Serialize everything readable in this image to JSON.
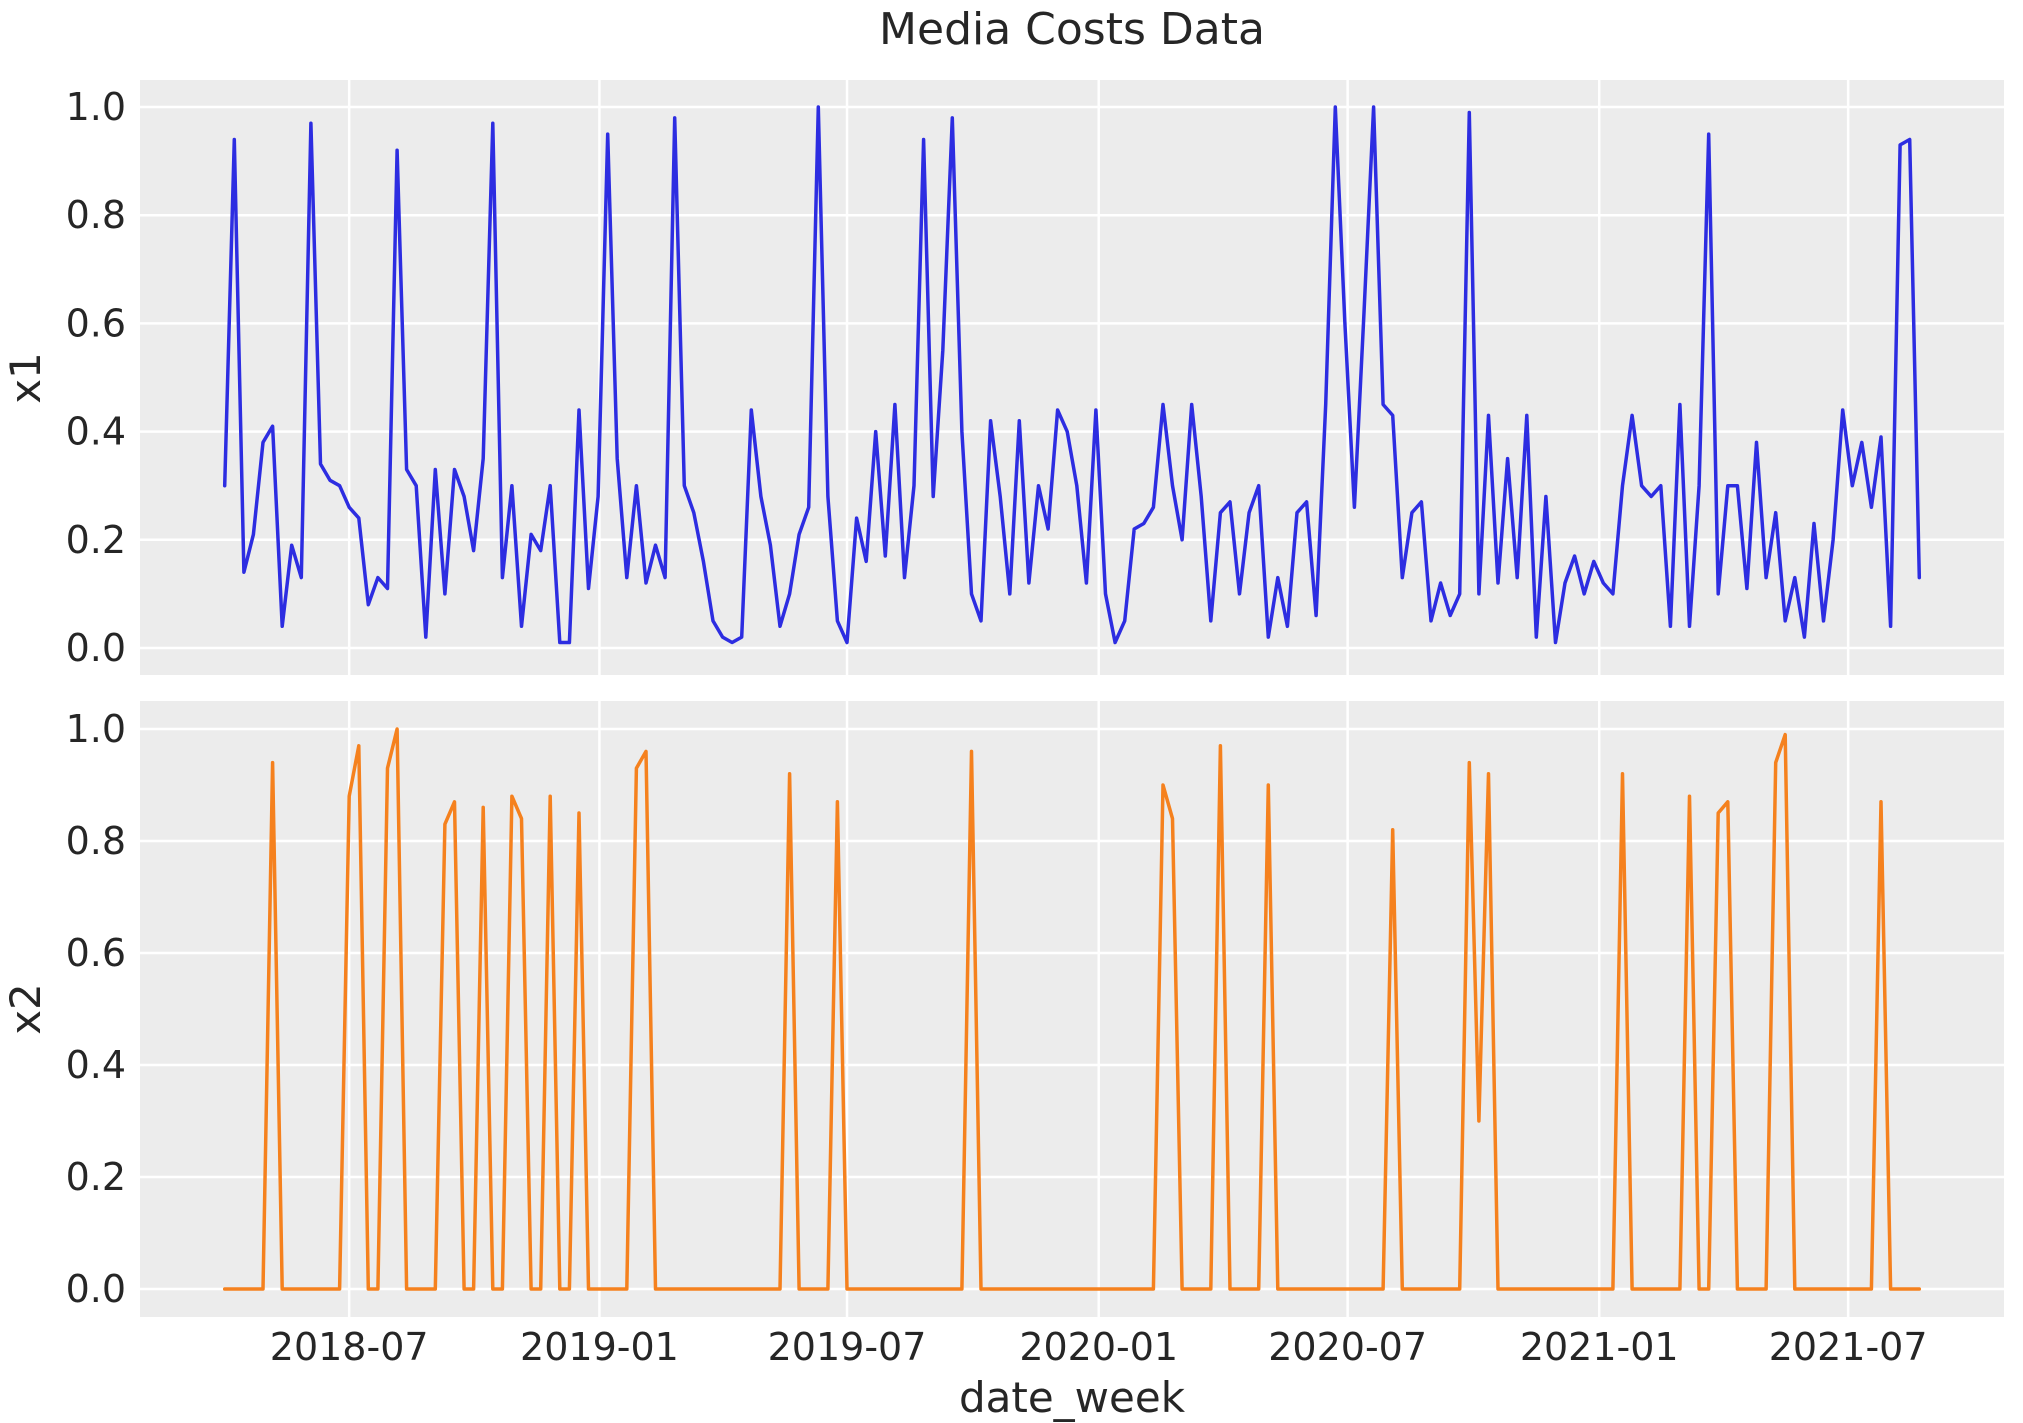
{
  "chart_data": {
    "type": "line",
    "title": "Media Costs Data",
    "xlabel": "date_week",
    "x_axis": {
      "start_date": "2018-04-02",
      "step_days": 7,
      "n_points": 178,
      "tick_labels": [
        "2018-07",
        "2019-01",
        "2019-07",
        "2020-01",
        "2020-07",
        "2021-01",
        "2021-07"
      ],
      "tick_week_positions": [
        13,
        39.14,
        65,
        91.29,
        117.29,
        143.57,
        169.57
      ],
      "xlim_weeks": [
        -8.85,
        185.85
      ]
    },
    "y_axis": {
      "tick_labels": [
        "0.0",
        "0.2",
        "0.4",
        "0.6",
        "0.8",
        "1.0"
      ],
      "tick_values": [
        0.0,
        0.2,
        0.4,
        0.6,
        0.8,
        1.0
      ],
      "ylim": [
        -0.05,
        1.05
      ]
    },
    "grid": true,
    "legend_position": "none",
    "style": {
      "plot_background": "#ececec",
      "grid_color": "#ffffff",
      "text_color": "#262626",
      "figure_background": "#ffffff"
    },
    "subplots": [
      {
        "name": "x1",
        "ylabel": "x1",
        "color": "#2d2de1",
        "values": [
          0.3,
          0.94,
          0.14,
          0.21,
          0.38,
          0.41,
          0.04,
          0.19,
          0.13,
          0.97,
          0.34,
          0.31,
          0.3,
          0.26,
          0.24,
          0.08,
          0.13,
          0.11,
          0.92,
          0.33,
          0.3,
          0.02,
          0.33,
          0.1,
          0.33,
          0.28,
          0.18,
          0.35,
          0.97,
          0.13,
          0.3,
          0.04,
          0.21,
          0.18,
          0.3,
          0.01,
          0.01,
          0.44,
          0.11,
          0.28,
          0.95,
          0.35,
          0.13,
          0.3,
          0.12,
          0.19,
          0.13,
          0.98,
          0.3,
          0.25,
          0.16,
          0.05,
          0.02,
          0.01,
          0.02,
          0.44,
          0.28,
          0.19,
          0.04,
          0.1,
          0.21,
          0.26,
          1.0,
          0.28,
          0.05,
          0.01,
          0.24,
          0.16,
          0.4,
          0.17,
          0.45,
          0.13,
          0.3,
          0.94,
          0.28,
          0.55,
          0.98,
          0.4,
          0.1,
          0.05,
          0.42,
          0.28,
          0.1,
          0.42,
          0.12,
          0.3,
          0.22,
          0.44,
          0.4,
          0.3,
          0.12,
          0.44,
          0.1,
          0.01,
          0.05,
          0.22,
          0.23,
          0.26,
          0.45,
          0.3,
          0.2,
          0.45,
          0.28,
          0.05,
          0.25,
          0.27,
          0.1,
          0.25,
          0.3,
          0.02,
          0.13,
          0.04,
          0.25,
          0.27,
          0.06,
          0.45,
          1.0,
          0.6,
          0.26,
          0.62,
          1.0,
          0.45,
          0.43,
          0.13,
          0.25,
          0.27,
          0.05,
          0.12,
          0.06,
          0.1,
          0.99,
          0.1,
          0.43,
          0.12,
          0.35,
          0.13,
          0.43,
          0.02,
          0.28,
          0.01,
          0.12,
          0.17,
          0.1,
          0.16,
          0.12,
          0.1,
          0.3,
          0.43,
          0.3,
          0.28,
          0.3,
          0.04,
          0.45,
          0.04,
          0.3,
          0.95,
          0.1,
          0.3,
          0.3,
          0.11,
          0.38,
          0.13,
          0.25,
          0.05,
          0.13,
          0.02,
          0.23,
          0.05,
          0.2,
          0.44,
          0.3,
          0.38,
          0.26,
          0.39,
          0.04,
          0.93,
          0.94,
          0.13
        ]
      },
      {
        "name": "x2",
        "ylabel": "x2",
        "color": "#f5811e",
        "values": [
          0,
          0,
          0,
          0,
          0,
          0.94,
          0,
          0,
          0,
          0,
          0,
          0,
          0,
          0.88,
          0.97,
          0,
          0,
          0.93,
          1.0,
          0,
          0,
          0,
          0,
          0.83,
          0.87,
          0,
          0,
          0.86,
          0,
          0,
          0.88,
          0.84,
          0,
          0,
          0.88,
          0,
          0,
          0.85,
          0,
          0,
          0,
          0,
          0,
          0.93,
          0.96,
          0,
          0,
          0,
          0,
          0,
          0,
          0,
          0,
          0,
          0,
          0,
          0,
          0,
          0,
          0.92,
          0,
          0,
          0,
          0,
          0.87,
          0,
          0,
          0,
          0,
          0,
          0,
          0,
          0,
          0,
          0,
          0,
          0,
          0,
          0.96,
          0,
          0,
          0,
          0,
          0,
          0,
          0,
          0,
          0,
          0,
          0,
          0,
          0,
          0,
          0,
          0,
          0,
          0,
          0,
          0.9,
          0.84,
          0,
          0,
          0,
          0,
          0.97,
          0,
          0,
          0,
          0,
          0.9,
          0,
          0,
          0,
          0,
          0,
          0,
          0,
          0,
          0,
          0,
          0,
          0,
          0.82,
          0,
          0,
          0,
          0,
          0,
          0,
          0,
          0.94,
          0.3,
          0.92,
          0,
          0,
          0,
          0,
          0,
          0,
          0,
          0,
          0,
          0,
          0,
          0,
          0,
          0.92,
          0,
          0,
          0,
          0,
          0,
          0,
          0.88,
          0,
          0,
          0.85,
          0.87,
          0,
          0,
          0,
          0,
          0.94,
          0.99,
          0,
          0,
          0,
          0,
          0,
          0,
          0,
          0,
          0,
          0.87,
          0,
          0,
          0,
          0
        ]
      }
    ]
  }
}
